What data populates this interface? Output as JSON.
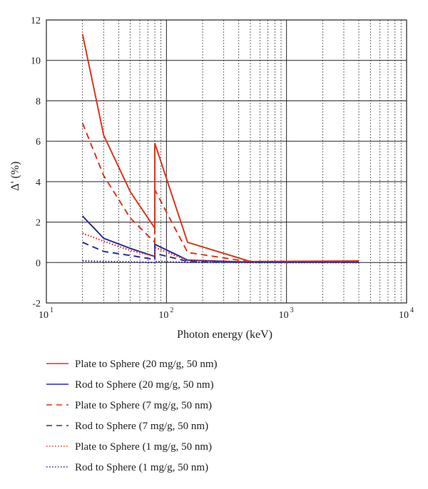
{
  "chart_data": {
    "type": "line",
    "xlabel": "Photon energy (keV)",
    "ylabel": "Δ' (%)",
    "xscale": "log",
    "xlim": [
      10,
      10000
    ],
    "ylim": [
      -2,
      12
    ],
    "grid": true,
    "legend_position": "below",
    "x_ticks": [
      {
        "value": 10,
        "base": "10",
        "exp": "1"
      },
      {
        "value": 100,
        "base": "10",
        "exp": "2"
      },
      {
        "value": 1000,
        "base": "10",
        "exp": "3"
      },
      {
        "value": 10000,
        "base": "10",
        "exp": "4"
      }
    ],
    "y_ticks": [
      -2,
      0,
      2,
      4,
      6,
      8,
      10,
      12
    ],
    "series": [
      {
        "name": "Plate to Sphere (20 mg/g, 50 nm)",
        "color": "#d4391f",
        "dash": "solid",
        "x": [
          20,
          30,
          50,
          80,
          80,
          150,
          500,
          4000
        ],
        "y": [
          11.3,
          6.3,
          3.5,
          1.7,
          5.9,
          1.0,
          0.05,
          0.08
        ]
      },
      {
        "name": "Rod to Sphere (20 mg/g, 50 nm)",
        "color": "#2b2b9e",
        "dash": "solid",
        "x": [
          20,
          30,
          50,
          80,
          80,
          150,
          500,
          4000
        ],
        "y": [
          2.3,
          1.2,
          0.7,
          0.3,
          0.9,
          0.12,
          0.02,
          0.02
        ]
      },
      {
        "name": "Plate to Sphere (7 mg/g, 50 nm)",
        "color": "#d4391f",
        "dash": "dashed",
        "x": [
          20,
          30,
          50,
          80,
          80,
          150,
          500,
          4000
        ],
        "y": [
          6.9,
          4.3,
          2.2,
          1.0,
          3.6,
          0.5,
          0.03,
          0.05
        ]
      },
      {
        "name": "Rod to Sphere (7 mg/g, 50 nm)",
        "color": "#2b2b9e",
        "dash": "dashed",
        "x": [
          20,
          30,
          50,
          80,
          80,
          150,
          500,
          4000
        ],
        "y": [
          1.0,
          0.55,
          0.35,
          0.15,
          0.45,
          0.06,
          0.01,
          0.01
        ]
      },
      {
        "name": "Plate to Sphere (1 mg/g, 50 nm)",
        "color": "#d4391f",
        "dash": "dotted",
        "x": [
          20,
          30,
          50,
          80,
          80,
          150,
          500,
          4000
        ],
        "y": [
          1.45,
          1.05,
          0.6,
          0.3,
          0.75,
          0.1,
          0.01,
          0.01
        ]
      },
      {
        "name": "Rod to Sphere (1 mg/g, 50 nm)",
        "color": "#2b2b9e",
        "dash": "dotted",
        "x": [
          20,
          30,
          50,
          80,
          80,
          150,
          500,
          4000
        ],
        "y": [
          0.08,
          0.05,
          0.03,
          0.0,
          0.05,
          0.01,
          0.0,
          0.0
        ]
      }
    ]
  }
}
